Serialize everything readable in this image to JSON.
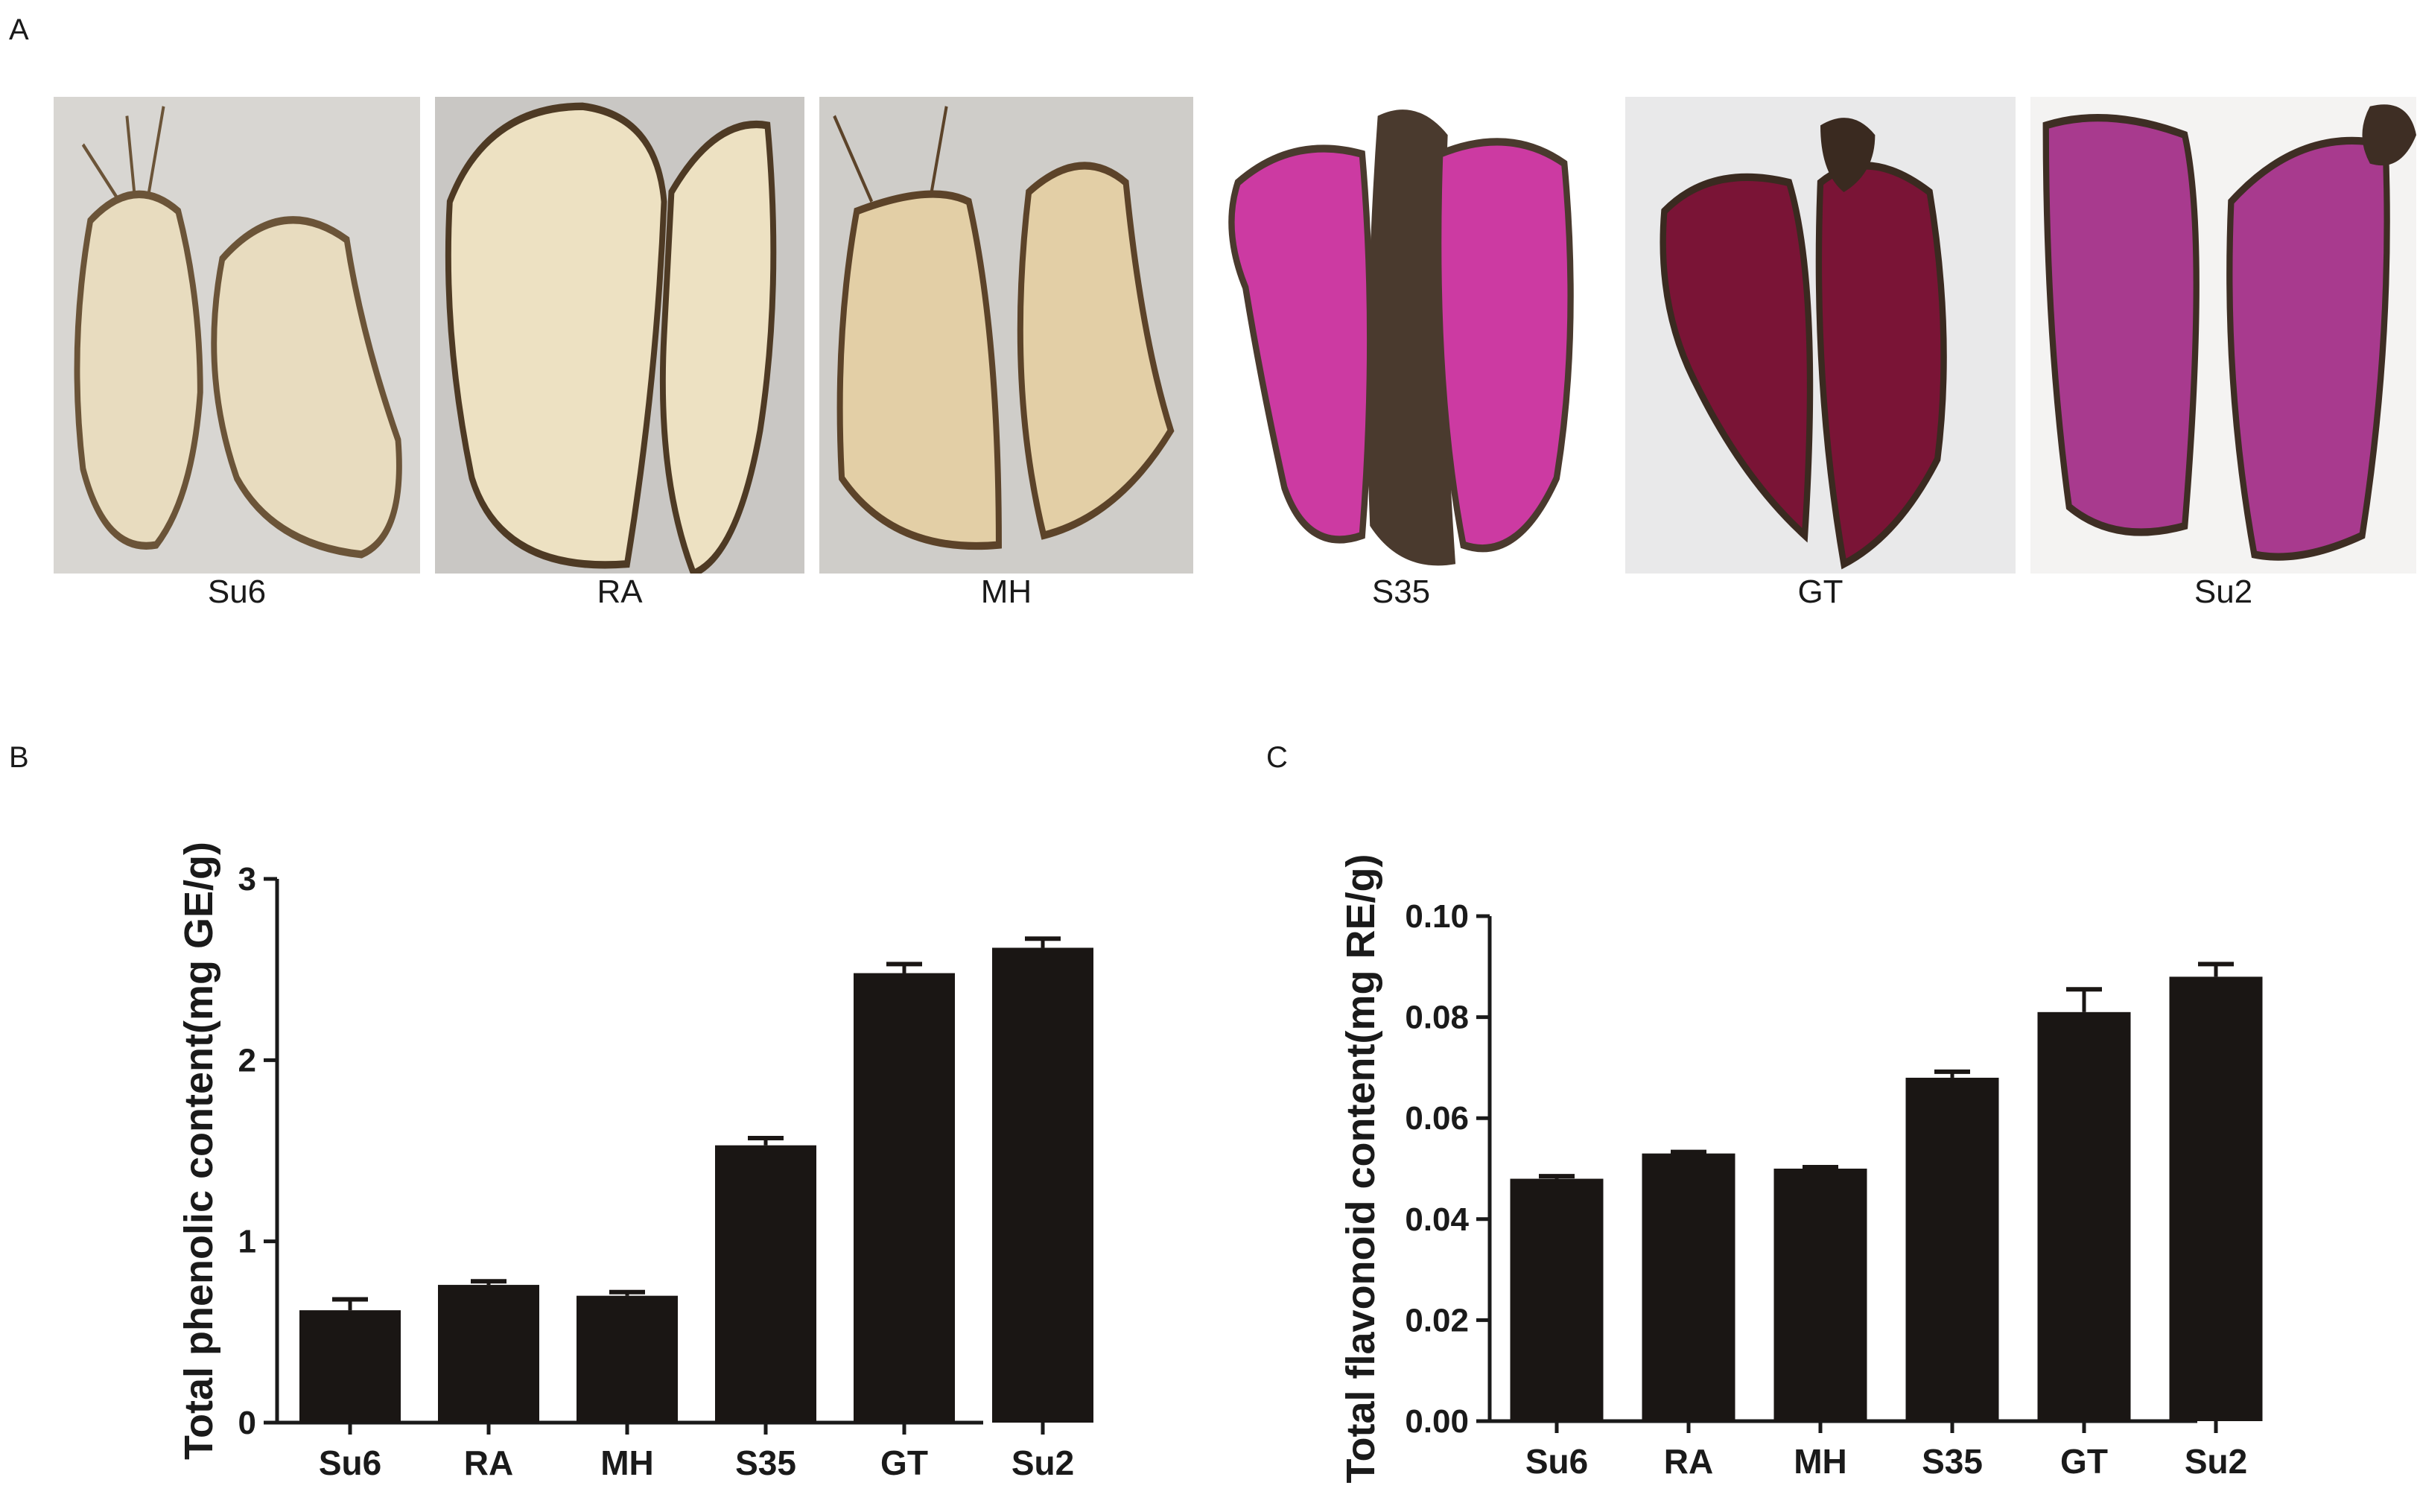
{
  "panels": {
    "a": "A",
    "b": "B",
    "c": "C"
  },
  "samples": [
    {
      "label": "Su6",
      "flesh": "#e8dcbf",
      "skin": "#6b5438"
    },
    {
      "label": "RA",
      "flesh": "#ede1c2",
      "skin": "#4e3a24"
    },
    {
      "label": "MH",
      "flesh": "#e3cfa6",
      "skin": "#5c4329"
    },
    {
      "label": "S35",
      "flesh": "#cc3aa2",
      "skin": "#4a3a2e"
    },
    {
      "label": "GT",
      "flesh": "#7a1436",
      "skin": "#3a2a20"
    },
    {
      "label": "Su2",
      "flesh": "#a83a8e",
      "skin": "#3e2e24"
    }
  ],
  "chart_data": [
    {
      "type": "bar",
      "panel": "B",
      "categories": [
        "Su6",
        "RA",
        "MH",
        "S35",
        "GT",
        "Su2"
      ],
      "values": [
        0.62,
        0.76,
        0.7,
        1.53,
        2.48,
        2.62
      ],
      "errors": [
        0.06,
        0.02,
        0.02,
        0.04,
        0.05,
        0.05
      ],
      "ylabel": "Total phenolic content(mg GE/g)",
      "xlabel": "",
      "ylim": [
        0,
        3
      ],
      "yticks": [
        0,
        1,
        2,
        3
      ],
      "ytick_labels": [
        "0",
        "1",
        "2",
        "3"
      ],
      "bar_color": "#1a1614"
    },
    {
      "type": "bar",
      "panel": "C",
      "categories": [
        "Su6",
        "RA",
        "MH",
        "S35",
        "GT",
        "Su2"
      ],
      "values": [
        0.048,
        0.053,
        0.05,
        0.068,
        0.081,
        0.088
      ],
      "errors": [
        0.0005,
        0.0003,
        0.0003,
        0.0012,
        0.0045,
        0.0025
      ],
      "ylabel": "Total flavonoid content(mg RE/g)",
      "xlabel": "",
      "ylim": [
        0,
        0.1
      ],
      "yticks": [
        0,
        0.02,
        0.04,
        0.06,
        0.08,
        0.1
      ],
      "ytick_labels": [
        "0.00",
        "0.02",
        "0.04",
        "0.06",
        "0.08",
        "0.10"
      ],
      "bar_color": "#1a1614"
    }
  ]
}
